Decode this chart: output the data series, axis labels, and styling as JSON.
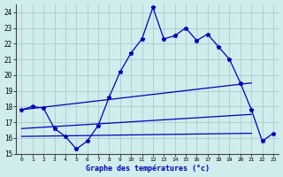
{
  "bg_color": "#d0ecec",
  "grid_color": "#aacccc",
  "line_color": "#0000bb",
  "xlim": [
    -0.5,
    23.5
  ],
  "ylim": [
    15,
    24.5
  ],
  "yticks": [
    15,
    16,
    17,
    18,
    19,
    20,
    21,
    22,
    23,
    24
  ],
  "xticks": [
    0,
    1,
    2,
    3,
    4,
    5,
    6,
    7,
    8,
    9,
    10,
    11,
    12,
    13,
    14,
    15,
    16,
    17,
    18,
    19,
    20,
    21,
    22,
    23
  ],
  "xlabel": "Graphe des températures (°c)",
  "main_x": [
    0,
    1,
    2,
    3,
    4,
    5,
    6,
    7,
    8,
    9,
    10,
    11,
    12,
    13,
    14,
    15,
    16,
    17,
    18,
    19,
    20,
    21,
    22,
    23
  ],
  "main_y": [
    17.8,
    18.0,
    17.9,
    16.6,
    16.1,
    15.3,
    15.8,
    16.8,
    18.6,
    20.2,
    21.4,
    22.3,
    24.3,
    22.3,
    22.5,
    23.0,
    22.2,
    22.6,
    21.8,
    21.0,
    19.5,
    17.8,
    15.8,
    16.3
  ],
  "line2_x": [
    0,
    21
  ],
  "line2_y": [
    17.8,
    19.5
  ],
  "line3_x": [
    0,
    21
  ],
  "line3_y": [
    16.6,
    17.5
  ],
  "line4_x": [
    0,
    21
  ],
  "line4_y": [
    16.1,
    16.3
  ]
}
